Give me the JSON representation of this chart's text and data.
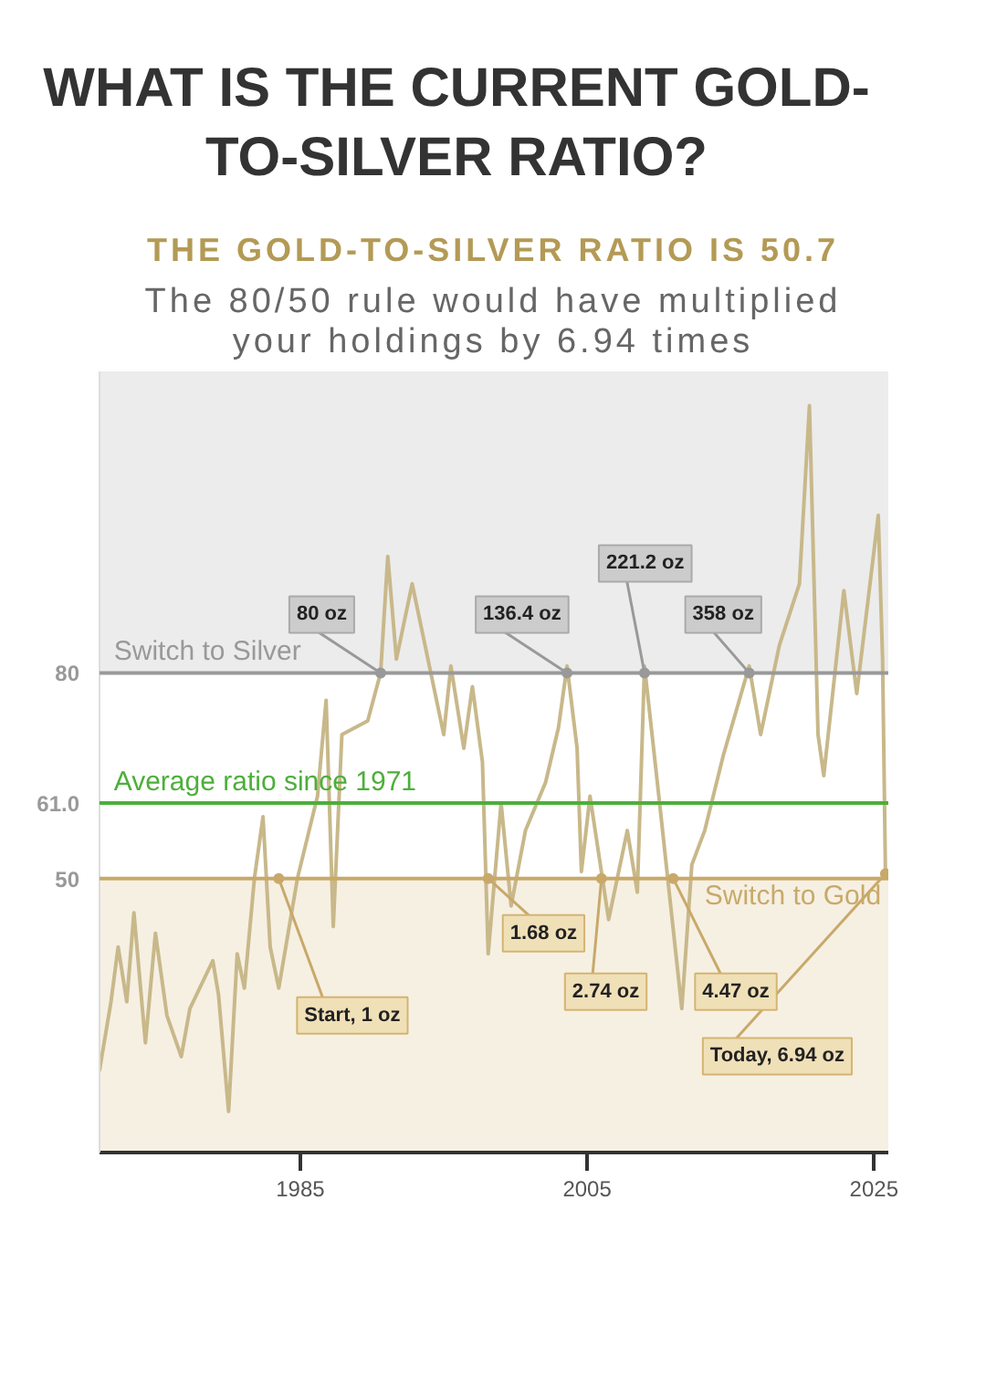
{
  "chart_data": {
    "type": "line",
    "title": "WHAT IS THE CURRENT GOLD-TO-SILVER RATIO?",
    "subtitle": "THE GOLD-TO-SILVER RATIO IS 50.7",
    "annotations": [
      "The 80/50 rule would have multiplied your holdings by 6.94 times",
      {
        "text": "Start, 1 oz",
        "x": 1983.5,
        "y": 50
      },
      {
        "text": "80 oz",
        "x": 1990.6,
        "y": 80
      },
      {
        "text": "1.68 oz",
        "x": 1998.1,
        "y": 50
      },
      {
        "text": "136.4 oz",
        "x": 2003.6,
        "y": 80
      },
      {
        "text": "2.74 oz",
        "x": 2006.0,
        "y": 50
      },
      {
        "text": "221.2 oz",
        "x": 2009.0,
        "y": 80
      },
      {
        "text": "4.47 oz",
        "x": 2011.0,
        "y": 50
      },
      {
        "text": "358 oz",
        "x": 2016.3,
        "y": 80
      },
      {
        "text": "Today, 6.94 oz",
        "x": 2025.8,
        "y": 50.7
      }
    ],
    "x": [
      1971,
      1971.8,
      1972.3,
      1972.9,
      1973.4,
      1974.2,
      1974.9,
      1975.7,
      1976.7,
      1977.3,
      1978.9,
      1979.3,
      1980,
      1980.6,
      1981.1,
      1981.8,
      1982.4,
      1982.9,
      1983.5,
      1984.8,
      1986.2,
      1986.8,
      1987.3,
      1987.9,
      1989.7,
      1990.6,
      1991.1,
      1991.7,
      1992.8,
      1994.1,
      1995,
      1995.5,
      1996.4,
      1997,
      1997.7,
      1998.1,
      1999,
      1999.7,
      2000.7,
      2002.1,
      2003,
      2003.6,
      2004.3,
      2004.6,
      2005.2,
      2006.5,
      2007.8,
      2008.5,
      2009,
      2010,
      2011.6,
      2012.3,
      2013.2,
      2014.5,
      2016.3,
      2017.1,
      2018.4,
      2019.8,
      2020.5,
      2021.1,
      2021.5,
      2022.9,
      2023.8,
      2025.3,
      2025.6,
      2025.8
    ],
    "series": [
      {
        "color": "#c8b88a",
        "values": [
          22,
          32,
          40,
          32,
          45,
          26,
          42,
          30,
          24,
          31,
          38,
          33,
          16,
          39,
          34,
          50,
          59,
          40,
          34,
          50,
          62,
          76,
          43,
          71,
          73,
          80,
          97,
          82,
          93,
          80,
          71,
          81,
          69,
          78,
          67,
          39,
          61,
          46,
          57,
          64,
          72,
          81,
          69,
          51,
          62,
          44,
          57,
          48,
          81,
          62,
          31,
          52,
          57,
          68,
          81,
          71,
          84,
          93,
          119,
          71,
          65,
          92,
          77,
          103,
          82,
          50.7
        ]
      }
    ],
    "xlim": [
      1971,
      2026
    ],
    "ylim": [
      10,
      124
    ],
    "xticks": [
      1985,
      2005,
      2025
    ],
    "yticks": [
      50,
      {
        "value": 61,
        "label": "61.0"
      },
      80
    ],
    "ref_lines": [
      {
        "axis": "y",
        "value": 80,
        "label": "Switch to Silver",
        "color": "#999999"
      },
      {
        "axis": "y",
        "value": 61,
        "label": "Average ratio since 1971",
        "color": "#4caf3a"
      },
      {
        "axis": "y",
        "value": 50,
        "label": "Switch to Gold",
        "color": "#c8a96a"
      }
    ],
    "bands": [
      {
        "axis": "y",
        "from": 80,
        "to": 124,
        "color": "#ececec"
      },
      {
        "axis": "y",
        "from": 10,
        "to": 50,
        "color": "#f6f0e3"
      }
    ],
    "grid": false,
    "legend": false,
    "line_style": "solid",
    "marker": "none"
  }
}
